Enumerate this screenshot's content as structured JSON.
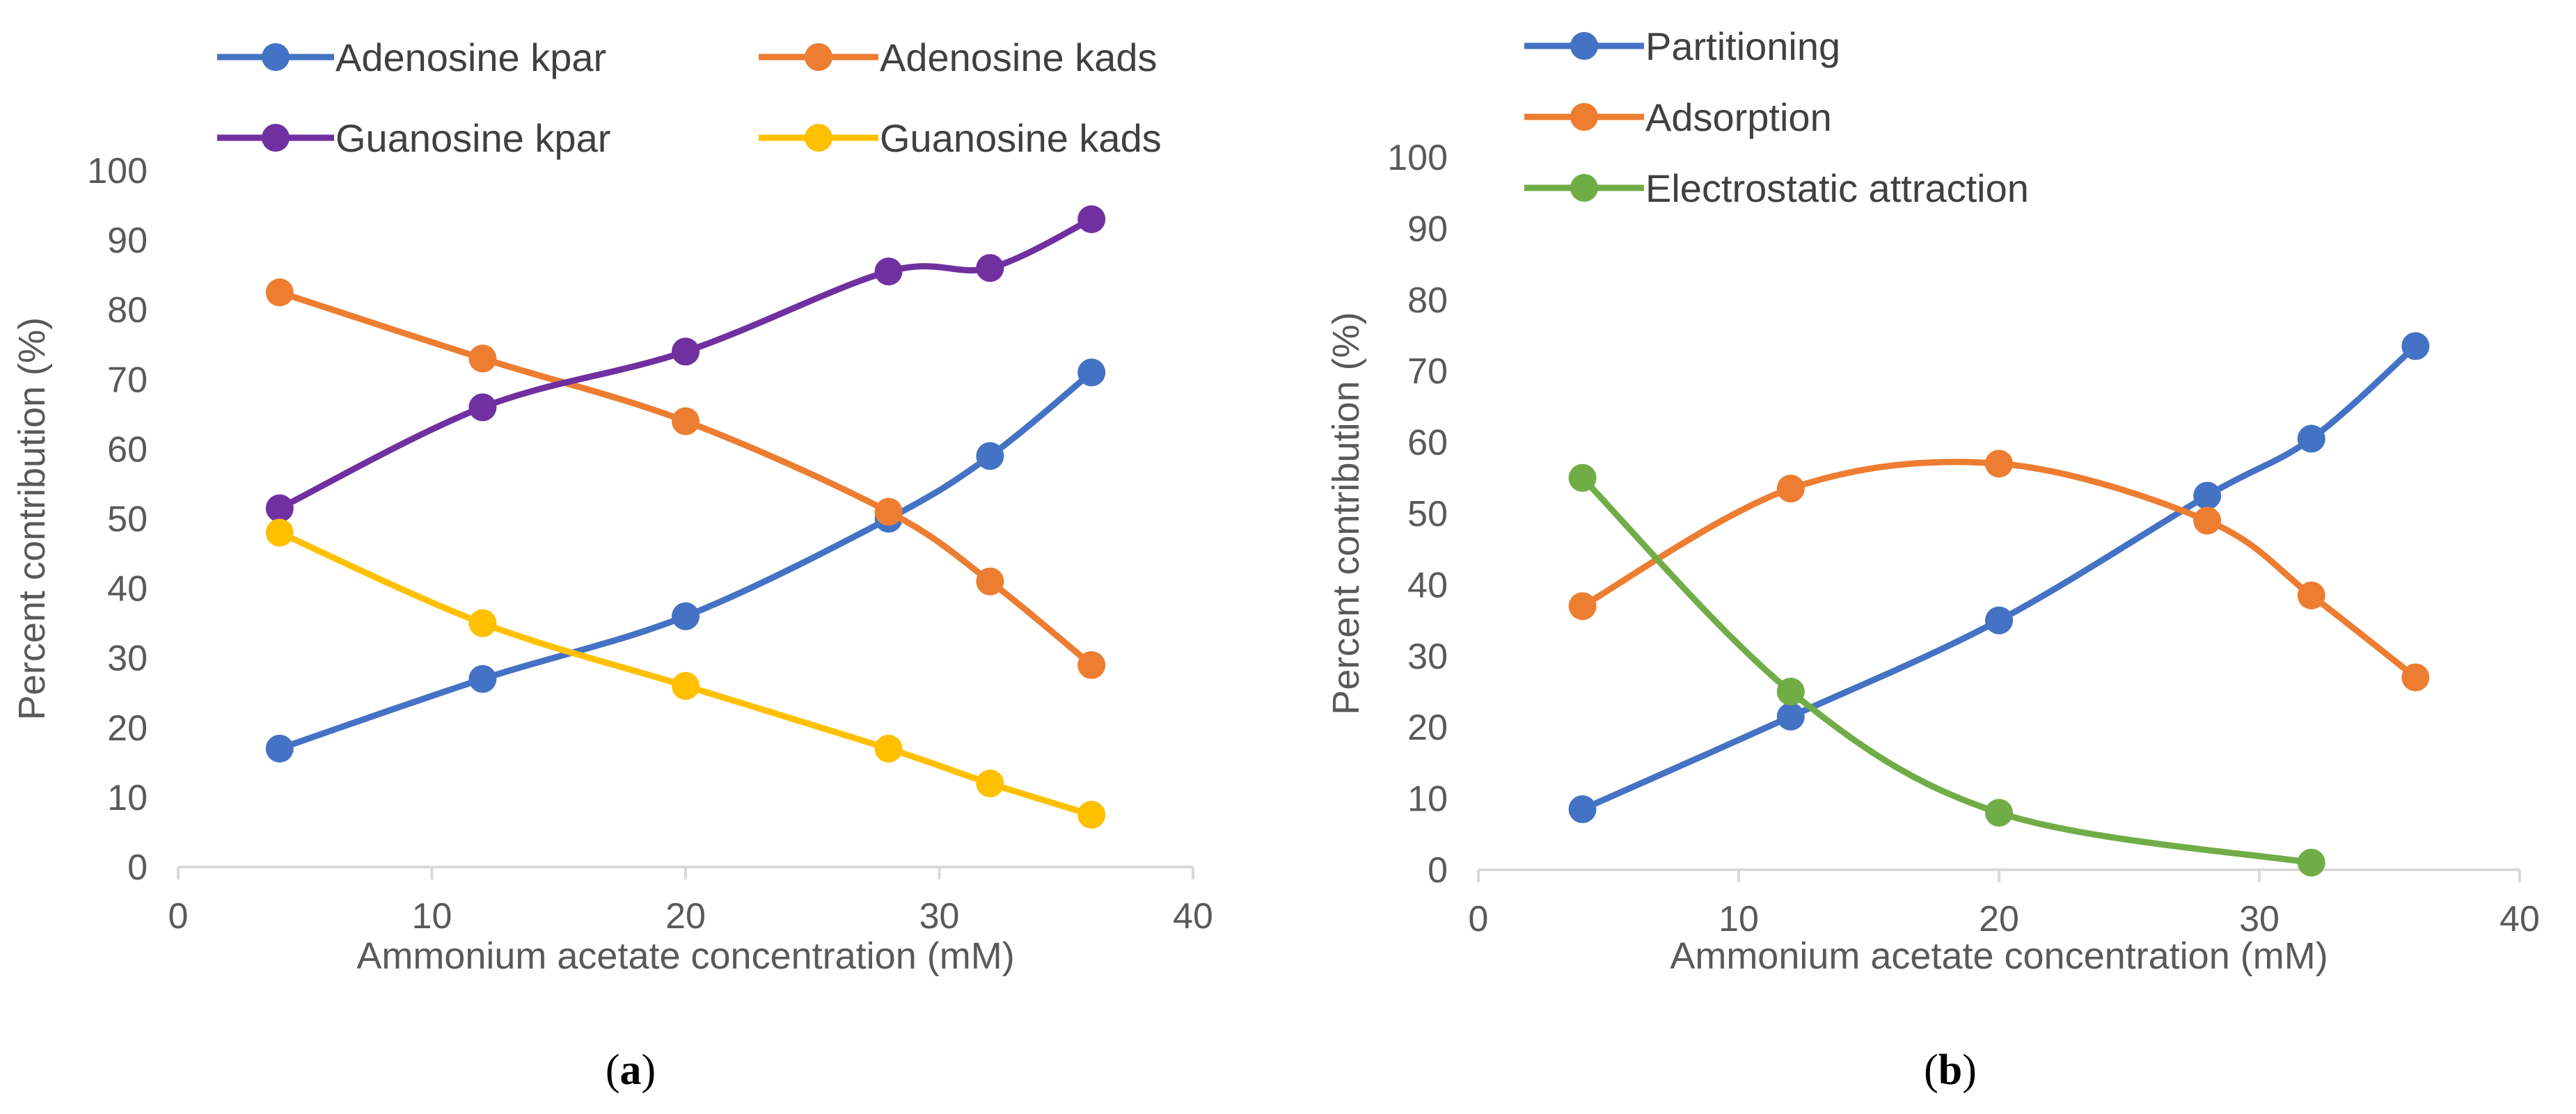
{
  "chart_data": [
    {
      "type": "line",
      "panel_label": "(a)",
      "panel_label_prefix": "(",
      "panel_label_letter": "a",
      "panel_label_suffix": ")",
      "xlabel": "Ammonium acetate concentration (mM)",
      "ylabel": "Percent contribution (%)",
      "xlim": [
        0,
        40
      ],
      "ylim": [
        0,
        100
      ],
      "xticks": [
        0,
        10,
        20,
        30,
        40
      ],
      "yticks": [
        0,
        10,
        20,
        30,
        40,
        50,
        60,
        70,
        80,
        90,
        100
      ],
      "grid": false,
      "legend_position": "top",
      "smooth": true,
      "series": [
        {
          "name": "Adenosine kpar",
          "color": "#4472C4",
          "x": [
            4,
            12,
            20,
            28,
            32,
            36
          ],
          "y": [
            17,
            27,
            36,
            50,
            59,
            71
          ]
        },
        {
          "name": "Adenosine kads",
          "color": "#ED7D31",
          "x": [
            4,
            12,
            20,
            28,
            32,
            36
          ],
          "y": [
            82.5,
            73,
            64,
            51,
            41,
            29
          ]
        },
        {
          "name": "Guanosine kpar",
          "color": "#7030A0",
          "x": [
            4,
            12,
            20,
            28,
            32,
            36
          ],
          "y": [
            51.5,
            66,
            74,
            85.5,
            86,
            93
          ]
        },
        {
          "name": "Guanosine kads",
          "color": "#FFC000",
          "x": [
            4,
            12,
            20,
            28,
            32,
            36
          ],
          "y": [
            48,
            35,
            26,
            17,
            12,
            7.5
          ]
        }
      ]
    },
    {
      "type": "line",
      "panel_label": "(b)",
      "panel_label_prefix": "(",
      "panel_label_letter": "b",
      "panel_label_suffix": ")",
      "xlabel": "Ammonium acetate concentration (mM)",
      "ylabel": "Percent contribution (%)",
      "xlim": [
        0,
        40
      ],
      "ylim": [
        0,
        100
      ],
      "xticks": [
        0,
        10,
        20,
        30,
        40
      ],
      "yticks": [
        0,
        10,
        20,
        30,
        40,
        50,
        60,
        70,
        80,
        90,
        100
      ],
      "grid": false,
      "legend_position": "top-left",
      "smooth": true,
      "series": [
        {
          "name": "Partitioning",
          "color": "#4472C4",
          "x": [
            4,
            12,
            20,
            28,
            32,
            36
          ],
          "y": [
            8.5,
            21.5,
            35,
            52.5,
            60.5,
            73.5
          ]
        },
        {
          "name": "Adsorption",
          "color": "#ED7D31",
          "x": [
            4,
            12,
            20,
            28,
            32,
            36
          ],
          "y": [
            37,
            53.5,
            57,
            49,
            38.5,
            27
          ]
        },
        {
          "name": "Electrostatic attraction",
          "color": "#70AD47",
          "x": [
            4,
            12,
            20,
            32
          ],
          "y": [
            55,
            25,
            8,
            1
          ]
        }
      ]
    }
  ]
}
